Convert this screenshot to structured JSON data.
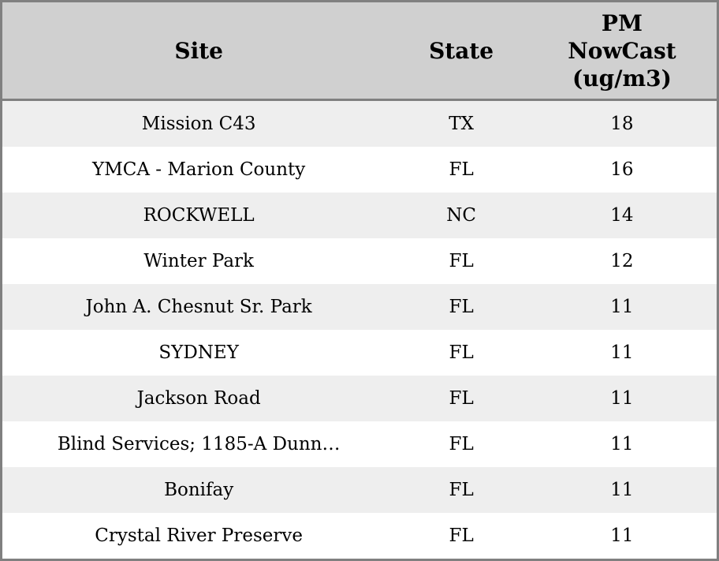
{
  "chart_data": {
    "type": "table",
    "columns": [
      "Site",
      "State",
      "PM NowCast (ug/m3)"
    ],
    "column_ids": [
      "site",
      "state",
      "pm_nowcast"
    ],
    "rows": [
      [
        "Mission C43",
        "TX",
        18
      ],
      [
        "YMCA - Marion County",
        "FL",
        16
      ],
      [
        "ROCKWELL",
        "NC",
        14
      ],
      [
        "Winter Park",
        "FL",
        12
      ],
      [
        "John A. Chesnut Sr. Park",
        "FL",
        11
      ],
      [
        "SYDNEY",
        "FL",
        11
      ],
      [
        "Jackson Road",
        "FL",
        11
      ],
      [
        "Blind Services; 1185-A Dunn…",
        "FL",
        11
      ],
      [
        "Bonifay",
        "FL",
        11
      ],
      [
        "Crystal River Preserve",
        "FL",
        11
      ]
    ],
    "sort": "pm_nowcast descending",
    "layout": {
      "header_background": "#d0d0d0",
      "row_background_alt": "#eeeeee",
      "row_background": "#ffffff",
      "border_color": "#808080",
      "text_color": "#000000",
      "header_bold": true
    }
  }
}
